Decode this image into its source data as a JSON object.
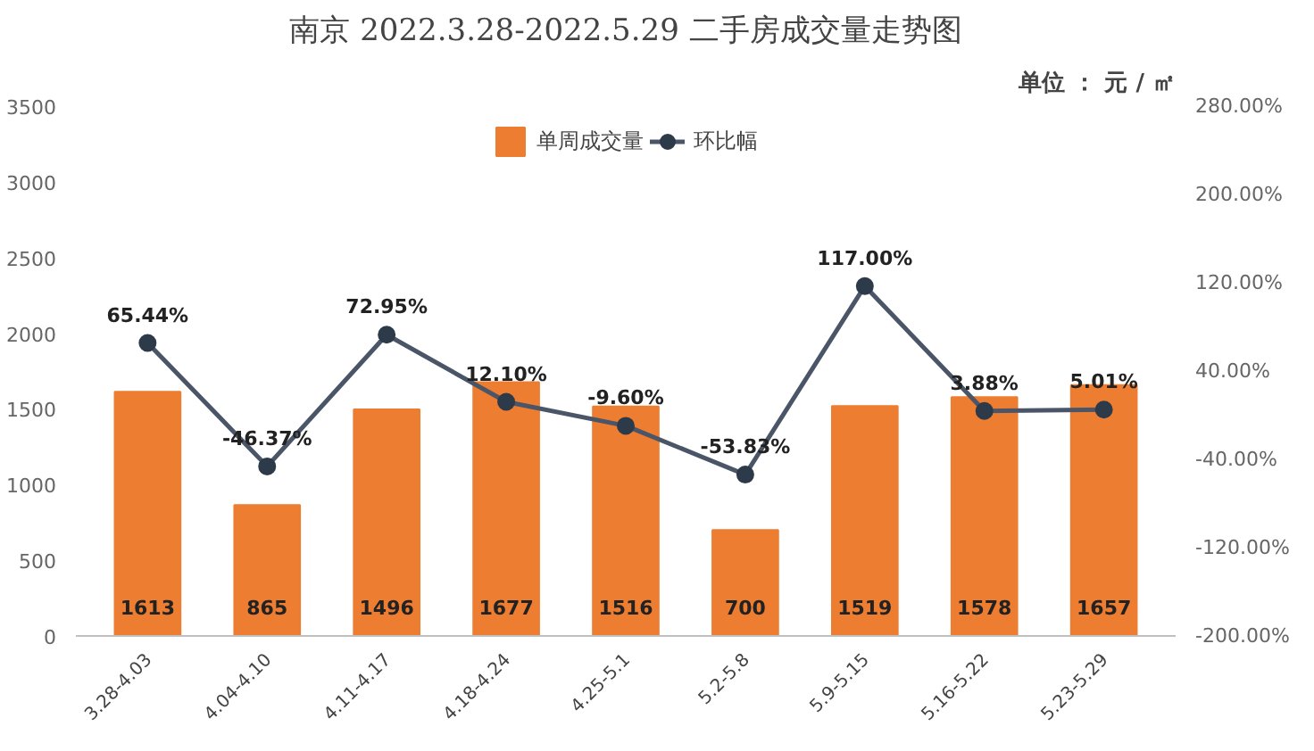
{
  "chart_data": {
    "type": "bar",
    "title": "南京 2022.3.28-2022.5.29 二手房成交量走势图",
    "subtitle": "单位 ： 元 / ㎡",
    "categories": [
      "3.28-4.03",
      "4.04-4.10",
      "4.11-4.17",
      "4.18-4.24",
      "4.25-5.1",
      "5.2-5.8",
      "5.9-5.15",
      "5.16-5.22",
      "5.23-5.29"
    ],
    "series": [
      {
        "name": "单周成交量",
        "color": "#ed7d31",
        "values": [
          1613,
          865,
          1496,
          1677,
          1516,
          700,
          1519,
          1578,
          1657
        ],
        "value_labels": [
          "1613",
          "865",
          "1496",
          "1677",
          "1516",
          "700",
          "1519",
          "1578",
          "1657"
        ]
      },
      {
        "name": "环比幅",
        "type": "line",
        "axis": "y2",
        "color": "#4a5668",
        "marker": "circle",
        "values": [
          65.44,
          -46.37,
          72.95,
          12.1,
          -9.6,
          -53.83,
          117.0,
          3.88,
          5.01
        ],
        "value_labels": [
          "65.44%",
          "-46.37%",
          "72.95%",
          "12.10%",
          "-9.60%",
          "-53.83%",
          "117.00%",
          "3.88%",
          "5.01%"
        ]
      }
    ],
    "ylim": [
      0,
      3500
    ],
    "yticks": [
      0,
      500,
      1000,
      1500,
      2000,
      2500,
      3000,
      3500
    ],
    "y2lim": [
      -200,
      280
    ],
    "y2ticks": [
      {
        "value": -200,
        "label": "-200.00%"
      },
      {
        "value": -120,
        "label": "-120.00%"
      },
      {
        "value": -40,
        "label": "-40.00%"
      },
      {
        "value": 40,
        "label": "40.00%"
      },
      {
        "value": 120,
        "label": "120.00%"
      },
      {
        "value": 200,
        "label": "200.00%"
      },
      {
        "value": 280,
        "label": "280.00%"
      }
    ],
    "grid": false,
    "legend": "top"
  }
}
